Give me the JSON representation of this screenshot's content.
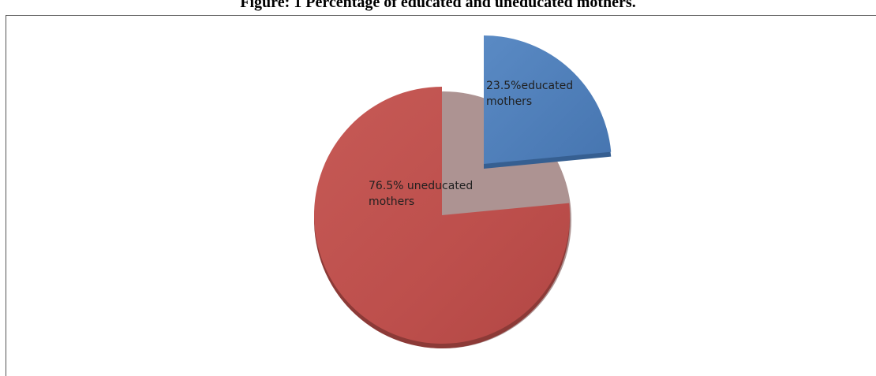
{
  "figure": {
    "title": "Figure: 1 Percentage of educated and uneducated mothers."
  },
  "chart_data": {
    "type": "pie",
    "title": "Figure: 1 Percentage of educated and uneducated mothers.",
    "slices": [
      {
        "label_line1": "23.5%educated",
        "label_line2": "mothers",
        "category": "educated mothers",
        "value": 23.5,
        "color": "#4f81bd",
        "exploded": true
      },
      {
        "label_line1": "76.5% uneducated",
        "label_line2": "mothers",
        "category": "uneducated mothers",
        "value": 76.5,
        "color": "#c0504d",
        "exploded": false
      }
    ],
    "legend": "none",
    "style": "3d-pie"
  }
}
